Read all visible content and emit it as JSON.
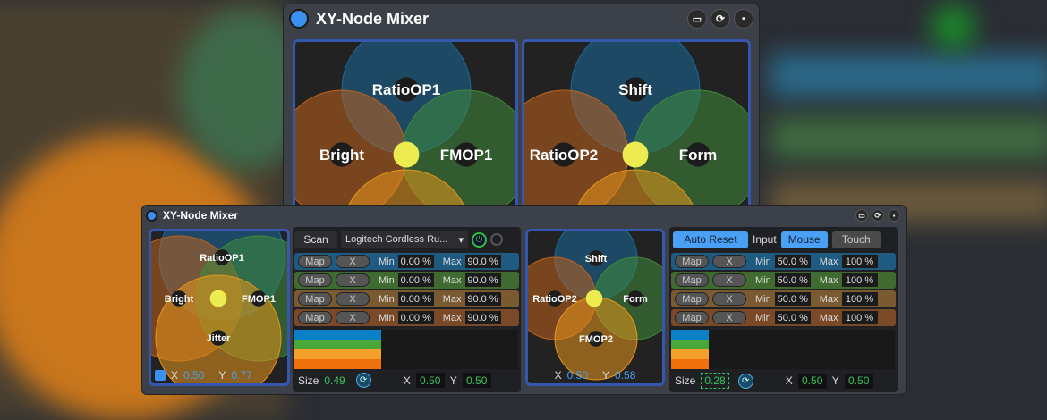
{
  "app_title": "XY-Node Mixer",
  "title_icons": [
    "fit-window-icon",
    "sync-icon",
    "save-icon"
  ],
  "colors": {
    "accent": "#3a8ff0",
    "pad_border": "#3557b0",
    "value_green": "#3bc45a",
    "row_blue": "#1f5a80",
    "row_green": "#3f6a30",
    "row_tan": "#7a5a30",
    "row_brown": "#7a4a28"
  },
  "top_window": {
    "pad1": {
      "nodes": [
        "RatioOP1",
        "Bright",
        "FMOP1"
      ]
    },
    "pad2": {
      "nodes": [
        "Shift",
        "RatioOP2",
        "Form"
      ]
    }
  },
  "left_pad": {
    "nodes": [
      "RatioOP1",
      "Bright",
      "FMOP1",
      "Jitter"
    ],
    "x_label": "X",
    "x": "0.50",
    "y_label": "Y",
    "y": "0.77"
  },
  "left_controls": {
    "scan": "Scan",
    "device": "Logitech Cordless Ru...",
    "rows": [
      {
        "map": "Map",
        "x": "X",
        "min_label": "Min",
        "min": "0.00 %",
        "max_label": "Max",
        "max": "90.0 %"
      },
      {
        "map": "Map",
        "x": "X",
        "min_label": "Min",
        "min": "0.00 %",
        "max_label": "Max",
        "max": "90.0 %"
      },
      {
        "map": "Map",
        "x": "X",
        "min_label": "Min",
        "min": "0.00 %",
        "max_label": "Max",
        "max": "90.0 %"
      },
      {
        "map": "Map",
        "x": "X",
        "min_label": "Min",
        "min": "0.00 %",
        "max_label": "Max",
        "max": "90.0 %"
      }
    ],
    "size_label": "Size",
    "size": "0.49",
    "x_label": "X",
    "x": "0.50",
    "y_label": "Y",
    "y": "0.50"
  },
  "right_pad": {
    "nodes": [
      "Shift",
      "RatioOP2",
      "Form",
      "FMOP2"
    ],
    "x_label": "X",
    "x": "0.50",
    "y_label": "Y",
    "y": "0.58"
  },
  "right_controls": {
    "auto_reset": "Auto Reset",
    "input_label": "Input",
    "mouse": "Mouse",
    "touch": "Touch",
    "rows": [
      {
        "map": "Map",
        "x": "X",
        "min_label": "Min",
        "min": "50.0 %",
        "max_label": "Max",
        "max": "100 %"
      },
      {
        "map": "Map",
        "x": "X",
        "min_label": "Min",
        "min": "50.0 %",
        "max_label": "Max",
        "max": "100 %"
      },
      {
        "map": "Map",
        "x": "X",
        "min_label": "Min",
        "min": "50.0 %",
        "max_label": "Max",
        "max": "100 %"
      },
      {
        "map": "Map",
        "x": "X",
        "min_label": "Min",
        "min": "50.0 %",
        "max_label": "Max",
        "max": "100 %"
      }
    ],
    "size_label": "Size",
    "size": "0.28",
    "x_label": "X",
    "x": "0.50",
    "y_label": "Y",
    "y": "0.50"
  }
}
